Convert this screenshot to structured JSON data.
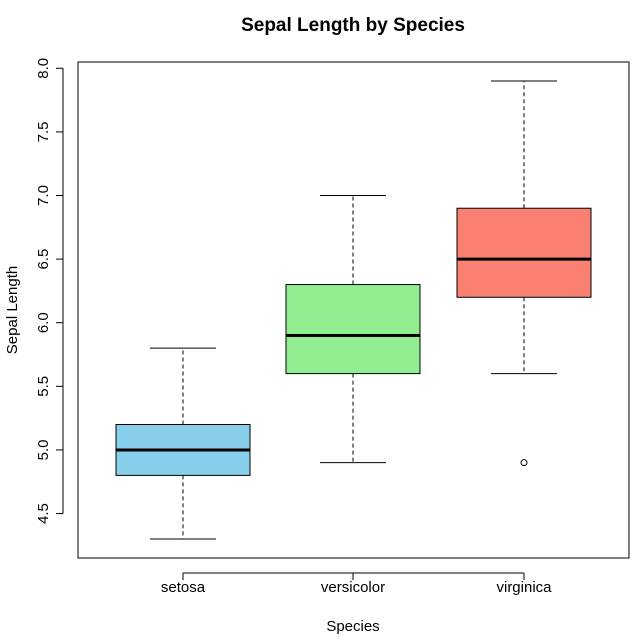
{
  "chart_data": {
    "type": "boxplot",
    "title": "Sepal Length by Species",
    "xlabel": "Species",
    "ylabel": "Sepal Length",
    "ylim": [
      4.3,
      7.9
    ],
    "yticks": [
      "4.5",
      "5.0",
      "5.5",
      "6.0",
      "6.5",
      "7.0",
      "7.5",
      "8.0"
    ],
    "categories": [
      "setosa",
      "versicolor",
      "virginica"
    ],
    "boxes": [
      {
        "category": "setosa",
        "whisker_low": 4.3,
        "q1": 4.8,
        "median": 5.0,
        "q3": 5.2,
        "whisker_high": 5.8,
        "outliers": [],
        "color": "#87CEEB"
      },
      {
        "category": "versicolor",
        "whisker_low": 4.9,
        "q1": 5.6,
        "median": 5.9,
        "q3": 6.3,
        "whisker_high": 7.0,
        "outliers": [],
        "color": "#90EE90"
      },
      {
        "category": "virginica",
        "whisker_low": 5.6,
        "q1": 6.2,
        "median": 6.5,
        "q3": 6.9,
        "whisker_high": 7.9,
        "outliers": [
          4.9
        ],
        "color": "#FA8072"
      }
    ],
    "grid": false,
    "legend": "none"
  }
}
